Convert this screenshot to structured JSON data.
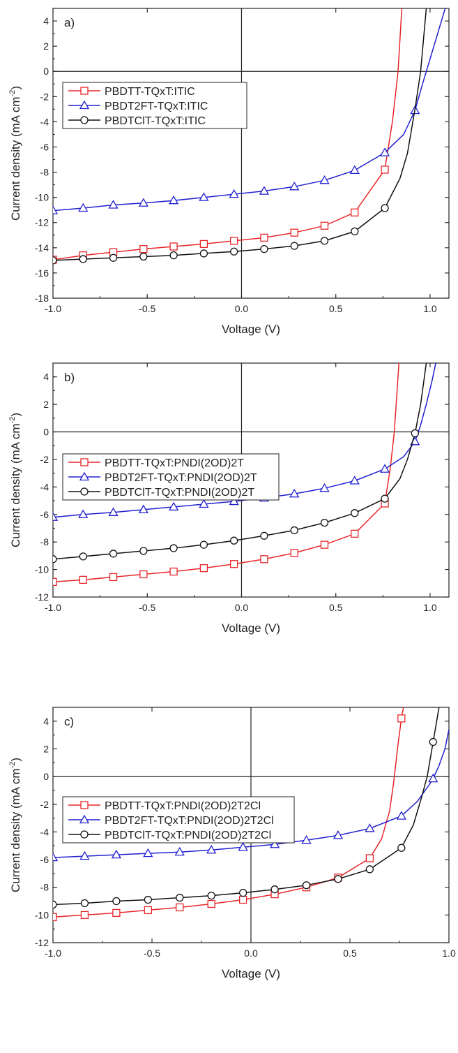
{
  "chart_data": [
    {
      "type": "line",
      "panel_label": "a)",
      "xlabel": "Voltage (V)",
      "ylabel": "Current density (mA cm",
      "ylabel_sup": "-2",
      "ylabel_close": ")",
      "xlim": [
        -1.0,
        1.1
      ],
      "ylim": [
        -18,
        5
      ],
      "xticks": [
        -1.0,
        -0.5,
        0.0,
        0.5,
        1.0
      ],
      "xtick_labels": [
        "-1.0",
        "-0.5",
        "0.0",
        "0.5",
        "1.0"
      ],
      "yticks": [
        -18,
        -16,
        -14,
        -12,
        -10,
        -8,
        -6,
        -4,
        -2,
        0,
        2,
        4
      ],
      "ytick_labels": [
        "-18",
        "-16",
        "-14",
        "-12",
        "-10",
        "-8",
        "-6",
        "-4",
        "-2",
        "0",
        "2",
        "4"
      ],
      "legend_position": "top-left",
      "series": [
        {
          "name": "PBDTT-TQxT:ITIC",
          "color": "#e8262a",
          "marker": "square",
          "x": [
            -1.0,
            -0.84,
            -0.68,
            -0.52,
            -0.36,
            -0.2,
            -0.04,
            0.12,
            0.28,
            0.44,
            0.6,
            0.76,
            0.8,
            0.83,
            0.85
          ],
          "y": [
            -14.95,
            -14.6,
            -14.35,
            -14.1,
            -13.9,
            -13.7,
            -13.45,
            -13.2,
            -12.8,
            -12.25,
            -11.2,
            -7.8,
            -4.0,
            0.0,
            5.0
          ],
          "marker_x": [
            -1.0,
            -0.84,
            -0.68,
            -0.52,
            -0.36,
            -0.2,
            -0.04,
            0.12,
            0.28,
            0.44,
            0.6,
            0.76
          ],
          "marker_y": [
            -14.95,
            -14.6,
            -14.35,
            -14.1,
            -13.9,
            -13.7,
            -13.45,
            -13.2,
            -12.8,
            -12.25,
            -11.2,
            -7.8
          ]
        },
        {
          "name": "PBDT2FT-TQxT:ITIC",
          "color": "#2020d0",
          "marker": "triangle",
          "x": [
            -1.0,
            -0.84,
            -0.68,
            -0.52,
            -0.36,
            -0.2,
            -0.04,
            0.12,
            0.28,
            0.44,
            0.6,
            0.76,
            0.86,
            0.92,
            0.96,
            1.0,
            1.04,
            1.08
          ],
          "y": [
            -11.05,
            -10.85,
            -10.6,
            -10.45,
            -10.25,
            -10.0,
            -9.75,
            -9.5,
            -9.15,
            -8.65,
            -7.85,
            -6.45,
            -5.0,
            -3.1,
            -1.0,
            1.0,
            3.0,
            5.0
          ],
          "marker_x": [
            -1.0,
            -0.84,
            -0.68,
            -0.52,
            -0.36,
            -0.2,
            -0.04,
            0.12,
            0.28,
            0.44,
            0.6,
            0.76,
            0.92
          ],
          "marker_y": [
            -11.05,
            -10.85,
            -10.6,
            -10.45,
            -10.25,
            -10.0,
            -9.75,
            -9.5,
            -9.15,
            -8.65,
            -7.85,
            -6.45,
            -3.1
          ]
        },
        {
          "name": "PBDTClT-TQxT:ITIC",
          "color": "#111111",
          "marker": "circle",
          "x": [
            -1.0,
            -0.84,
            -0.68,
            -0.52,
            -0.36,
            -0.2,
            -0.04,
            0.12,
            0.28,
            0.44,
            0.6,
            0.76,
            0.84,
            0.88,
            0.92,
            0.95,
            0.98
          ],
          "y": [
            -15.0,
            -14.9,
            -14.8,
            -14.7,
            -14.6,
            -14.45,
            -14.3,
            -14.1,
            -13.85,
            -13.45,
            -12.7,
            -10.85,
            -8.5,
            -6.5,
            -3.0,
            0.0,
            5.0
          ],
          "marker_x": [
            -1.0,
            -0.84,
            -0.68,
            -0.52,
            -0.36,
            -0.2,
            -0.04,
            0.12,
            0.28,
            0.44,
            0.6,
            0.76
          ],
          "marker_y": [
            -15.0,
            -14.9,
            -14.8,
            -14.7,
            -14.6,
            -14.45,
            -14.3,
            -14.1,
            -13.85,
            -13.45,
            -12.7,
            -10.85
          ]
        }
      ]
    },
    {
      "type": "line",
      "panel_label": "b)",
      "xlabel": "Voltage (V)",
      "ylabel": "Current density (mA cm",
      "ylabel_sup": "-2",
      "ylabel_close": ")",
      "xlim": [
        -1.0,
        1.1
      ],
      "ylim": [
        -12,
        5
      ],
      "xticks": [
        -1.0,
        -0.5,
        0.0,
        0.5,
        1.0
      ],
      "xtick_labels": [
        "-1.0",
        "-0.5",
        "0.0",
        "0.5",
        "1.0"
      ],
      "yticks": [
        -12,
        -10,
        -8,
        -6,
        -4,
        -2,
        0,
        2,
        4
      ],
      "ytick_labels": [
        "-12",
        "-10",
        "-8",
        "-6",
        "-4",
        "-2",
        "0",
        "2",
        "4"
      ],
      "legend_position": "center-left",
      "series": [
        {
          "name": "PBDTT-TQxT:PNDI(2OD)2T",
          "color": "#e8262a",
          "marker": "square",
          "x": [
            -1.0,
            -0.84,
            -0.68,
            -0.52,
            -0.36,
            -0.2,
            -0.04,
            0.12,
            0.28,
            0.44,
            0.6,
            0.76,
            0.79,
            0.81,
            0.82,
            0.835
          ],
          "y": [
            -10.9,
            -10.75,
            -10.55,
            -10.35,
            -10.15,
            -9.9,
            -9.6,
            -9.25,
            -8.8,
            -8.2,
            -7.4,
            -5.2,
            -2.5,
            0.0,
            2.0,
            5.0
          ],
          "marker_x": [
            -1.0,
            -0.84,
            -0.68,
            -0.52,
            -0.36,
            -0.2,
            -0.04,
            0.12,
            0.28,
            0.44,
            0.6,
            0.76
          ],
          "marker_y": [
            -10.9,
            -10.75,
            -10.55,
            -10.35,
            -10.15,
            -9.9,
            -9.6,
            -9.25,
            -8.8,
            -8.2,
            -7.4,
            -5.2
          ]
        },
        {
          "name": "PBDT2FT-TQxT:PNDI(2OD)2T",
          "color": "#2020d0",
          "marker": "triangle",
          "x": [
            -1.0,
            -0.84,
            -0.68,
            -0.52,
            -0.36,
            -0.2,
            -0.04,
            0.12,
            0.28,
            0.44,
            0.6,
            0.76,
            0.86,
            0.92,
            0.95,
            0.98,
            1.01,
            1.03
          ],
          "y": [
            -6.2,
            -6.0,
            -5.85,
            -5.65,
            -5.45,
            -5.25,
            -5.05,
            -4.8,
            -4.5,
            -4.1,
            -3.55,
            -2.7,
            -1.8,
            -0.7,
            0.5,
            2.0,
            3.7,
            5.0
          ],
          "marker_x": [
            -1.0,
            -0.84,
            -0.68,
            -0.52,
            -0.36,
            -0.2,
            -0.04,
            0.12,
            0.28,
            0.44,
            0.6,
            0.76,
            0.92
          ],
          "marker_y": [
            -6.2,
            -6.0,
            -5.85,
            -5.65,
            -5.45,
            -5.25,
            -5.05,
            -4.8,
            -4.5,
            -4.1,
            -3.55,
            -2.7,
            -0.7
          ]
        },
        {
          "name": "PBDTClT-TQxT:PNDI(2OD)2T",
          "color": "#111111",
          "marker": "circle",
          "x": [
            -1.0,
            -0.84,
            -0.68,
            -0.52,
            -0.36,
            -0.2,
            -0.04,
            0.12,
            0.28,
            0.44,
            0.6,
            0.76,
            0.84,
            0.88,
            0.92,
            0.95,
            0.98
          ],
          "y": [
            -9.25,
            -9.05,
            -8.85,
            -8.65,
            -8.45,
            -8.2,
            -7.9,
            -7.55,
            -7.15,
            -6.6,
            -5.9,
            -4.85,
            -3.4,
            -2.0,
            -0.1,
            2.0,
            5.0
          ],
          "marker_x": [
            -1.0,
            -0.84,
            -0.68,
            -0.52,
            -0.36,
            -0.2,
            -0.04,
            0.12,
            0.28,
            0.44,
            0.6,
            0.76,
            0.92
          ],
          "marker_y": [
            -9.25,
            -9.05,
            -8.85,
            -8.65,
            -8.45,
            -8.2,
            -7.9,
            -7.55,
            -7.15,
            -6.6,
            -5.9,
            -4.85,
            -0.1
          ]
        }
      ]
    },
    {
      "type": "line",
      "panel_label": "c)",
      "xlabel": "Voltage (V)",
      "ylabel": "Current density (mA cm",
      "ylabel_sup": "-2",
      "ylabel_close": ")",
      "xlim": [
        -1.0,
        1.0
      ],
      "ylim": [
        -12,
        5
      ],
      "xticks": [
        -1.0,
        -0.5,
        0.0,
        0.5,
        1.0
      ],
      "xtick_labels": [
        "-1.0",
        "-0.5",
        "0.0",
        "0.5",
        "1.0"
      ],
      "yticks": [
        -12,
        -10,
        -8,
        -6,
        -4,
        -2,
        0,
        2,
        4
      ],
      "ytick_labels": [
        "-12",
        "-10",
        "-8",
        "-6",
        "-4",
        "-2",
        "0",
        "2",
        "4"
      ],
      "legend_position": "center-left",
      "series": [
        {
          "name": "PBDTT-TQxT:PNDI(2OD)2T2Cl",
          "color": "#e8262a",
          "marker": "square",
          "x": [
            -1.0,
            -0.84,
            -0.68,
            -0.52,
            -0.36,
            -0.2,
            -0.04,
            0.12,
            0.28,
            0.44,
            0.6,
            0.66,
            0.7,
            0.72,
            0.74,
            0.76,
            0.77
          ],
          "y": [
            -10.15,
            -10.0,
            -9.85,
            -9.65,
            -9.45,
            -9.2,
            -8.9,
            -8.5,
            -8.0,
            -7.3,
            -5.9,
            -4.5,
            -2.5,
            -0.5,
            2.0,
            4.2,
            5.0
          ],
          "marker_x": [
            -1.0,
            -0.84,
            -0.68,
            -0.52,
            -0.36,
            -0.2,
            -0.04,
            0.12,
            0.28,
            0.44,
            0.6,
            0.76
          ],
          "marker_y": [
            -10.15,
            -10.0,
            -9.85,
            -9.65,
            -9.45,
            -9.2,
            -8.9,
            -8.5,
            -8.0,
            -7.3,
            -5.9,
            4.2
          ]
        },
        {
          "name": "PBDT2FT-TQxT:PNDI(2OD)2T2Cl",
          "color": "#2020d0",
          "marker": "triangle",
          "x": [
            -1.0,
            -0.84,
            -0.68,
            -0.52,
            -0.36,
            -0.2,
            -0.04,
            0.12,
            0.28,
            0.44,
            0.6,
            0.76,
            0.84,
            0.9,
            0.92,
            0.95,
            0.98,
            1.0
          ],
          "y": [
            -5.85,
            -5.75,
            -5.65,
            -5.55,
            -5.45,
            -5.3,
            -5.1,
            -4.9,
            -4.6,
            -4.25,
            -3.75,
            -2.85,
            -1.8,
            -0.6,
            -0.15,
            0.8,
            2.0,
            3.4
          ],
          "marker_x": [
            -1.0,
            -0.84,
            -0.68,
            -0.52,
            -0.36,
            -0.2,
            -0.04,
            0.12,
            0.28,
            0.44,
            0.6,
            0.76,
            0.92
          ],
          "marker_y": [
            -5.85,
            -5.75,
            -5.65,
            -5.55,
            -5.45,
            -5.3,
            -5.1,
            -4.9,
            -4.6,
            -4.25,
            -3.75,
            -2.85,
            -0.15
          ]
        },
        {
          "name": "PBDTClT-TQxT:PNDI(2OD)2T2Cl",
          "color": "#111111",
          "marker": "circle",
          "x": [
            -1.0,
            -0.84,
            -0.68,
            -0.52,
            -0.36,
            -0.2,
            -0.04,
            0.12,
            0.28,
            0.44,
            0.6,
            0.76,
            0.82,
            0.86,
            0.89,
            0.92,
            0.95
          ],
          "y": [
            -9.25,
            -9.15,
            -9.0,
            -8.9,
            -8.75,
            -8.6,
            -8.4,
            -8.15,
            -7.85,
            -7.4,
            -6.7,
            -5.15,
            -3.5,
            -1.6,
            0.0,
            2.5,
            5.0
          ],
          "marker_x": [
            -1.0,
            -0.84,
            -0.68,
            -0.52,
            -0.36,
            -0.2,
            -0.04,
            0.12,
            0.28,
            0.44,
            0.6,
            0.76,
            0.92
          ],
          "marker_y": [
            -9.25,
            -9.15,
            -9.0,
            -8.9,
            -8.75,
            -8.6,
            -8.4,
            -8.15,
            -7.85,
            -7.4,
            -6.7,
            -5.15,
            2.5
          ]
        }
      ]
    }
  ]
}
